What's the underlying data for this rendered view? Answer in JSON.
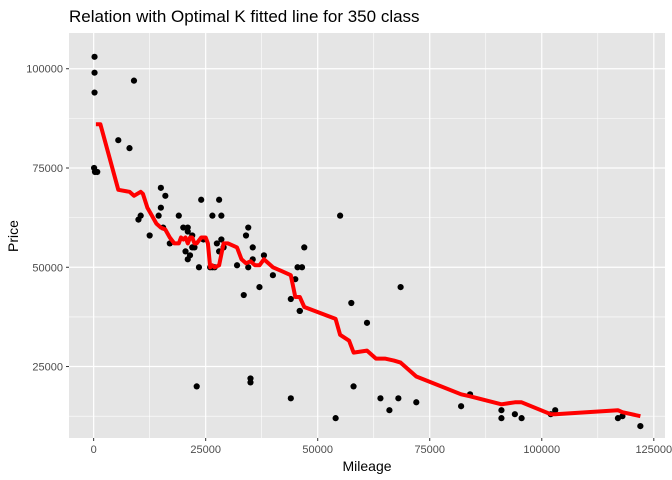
{
  "chart_data": {
    "type": "scatter",
    "title": "Relation with Optimal K fitted line for 350 class",
    "xlabel": "Mileage",
    "ylabel": "Price",
    "xlim": [
      -5500,
      127500
    ],
    "ylim": [
      7000,
      109000
    ],
    "x_ticks": [
      0,
      25000,
      50000,
      75000,
      100000,
      125000
    ],
    "x_tick_labels": [
      "0",
      "25000",
      "50000",
      "75000",
      "100000",
      "125000"
    ],
    "y_ticks": [
      25000,
      50000,
      75000,
      100000
    ],
    "y_tick_labels": [
      "25000",
      "50000",
      "75000",
      "100000"
    ],
    "grid": true,
    "background": "#e5e5e5",
    "grid_color": "#ffffff",
    "point_color": "#000000",
    "line_color": "#ff0000",
    "series": [
      {
        "kind": "points",
        "x": [
          200,
          200,
          200,
          100,
          300,
          800,
          9000,
          5500,
          8000,
          10000,
          10500,
          12500,
          14500,
          15000,
          15000,
          15500,
          16000,
          17000,
          19000,
          20000,
          20500,
          21000,
          21000,
          21500,
          21000,
          22000,
          22000,
          22500,
          23000,
          23500,
          24000,
          24500,
          26000,
          26500,
          26500,
          27000,
          27500,
          28000,
          28000,
          28500,
          28500,
          29000,
          32000,
          33500,
          34000,
          34500,
          34500,
          35000,
          35000,
          35500,
          35500,
          37000,
          38000,
          40000,
          44000,
          44000,
          45000,
          45500,
          46000,
          46000,
          46500,
          47000,
          54000,
          55000,
          57500,
          58000,
          61000,
          64000,
          66000,
          68000,
          68500,
          72000,
          82000,
          84000,
          91000,
          91000,
          94000,
          95500,
          102000,
          103000,
          117000,
          118000,
          122000
        ],
        "y": [
          103000,
          99000,
          94000,
          75000,
          74000,
          74000,
          97000,
          82000,
          80000,
          62000,
          63000,
          58000,
          63000,
          70000,
          65000,
          60000,
          68000,
          56000,
          63000,
          60000,
          54000,
          59000,
          52000,
          53000,
          60000,
          58000,
          55000,
          55000,
          20000,
          50000,
          67000,
          57000,
          50000,
          63000,
          50000,
          50000,
          56000,
          67000,
          54000,
          63000,
          57000,
          55000,
          50500,
          43000,
          58000,
          50000,
          60000,
          21000,
          22000,
          52000,
          55000,
          45000,
          53000,
          48000,
          17000,
          42000,
          47000,
          50000,
          39000,
          39000,
          50000,
          55000,
          12000,
          63000,
          41000,
          20000,
          36000,
          17000,
          14000,
          17000,
          45000,
          16000,
          15000,
          18000,
          14000,
          12000,
          13000,
          12000,
          13000,
          14000,
          12000,
          12500,
          10000
        ]
      },
      {
        "kind": "fitted-line",
        "x": [
          500,
          1500,
          5500,
          8000,
          9000,
          10500,
          11000,
          12000,
          13000,
          14000,
          15000,
          16000,
          17000,
          18000,
          19000,
          19500,
          20000,
          20500,
          21000,
          21500,
          22000,
          22500,
          23000,
          24000,
          25000,
          25500,
          26000,
          26500,
          27000,
          28000,
          29000,
          30000,
          31000,
          32000,
          33000,
          34000,
          35000,
          36000,
          37000,
          38000,
          39000,
          40000,
          42000,
          44000,
          45000,
          46000,
          47000,
          54000,
          55000,
          57000,
          58000,
          61000,
          63000,
          65000,
          67000,
          68500,
          72000,
          82000,
          84000,
          91000,
          94000,
          95500,
          102000,
          103000,
          117000,
          118000,
          122000
        ],
        "y": [
          86000,
          86000,
          69500,
          69000,
          68000,
          69000,
          68500,
          65000,
          63000,
          61000,
          60000,
          59500,
          57500,
          56000,
          56000,
          57500,
          57000,
          57500,
          56000,
          57500,
          57500,
          56000,
          56000,
          57500,
          57500,
          56000,
          50000,
          50500,
          50000,
          50500,
          56000,
          56000,
          55500,
          55000,
          52000,
          51000,
          51500,
          50500,
          50500,
          52000,
          51000,
          50000,
          49000,
          48000,
          42500,
          42500,
          40000,
          37000,
          33000,
          31500,
          28500,
          29000,
          27000,
          27000,
          26500,
          26000,
          22500,
          18000,
          17500,
          15500,
          16000,
          16000,
          13000,
          13000,
          14000,
          13500,
          12500
        ]
      }
    ]
  }
}
